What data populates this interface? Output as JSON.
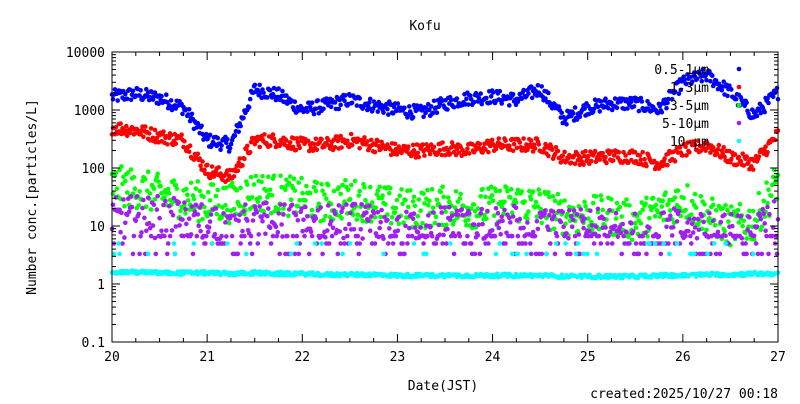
{
  "chart_data": {
    "type": "scatter",
    "title": "Kofu",
    "xlabel": "Date(JST)",
    "ylabel": "Number conc.[particles/L]",
    "yscale": "log",
    "xlim": [
      20,
      27
    ],
    "ylim": [
      0.1,
      10000
    ],
    "xticks": [
      "20",
      "21",
      "22",
      "23",
      "24",
      "25",
      "26",
      "27"
    ],
    "yticks": [
      "0.1",
      "1",
      "10",
      "100",
      "1000",
      "10000"
    ],
    "legend_position": "top-right",
    "footer": "created:2025/10/27 00:18",
    "x": [
      20,
      20.25,
      20.5,
      20.75,
      21,
      21.25,
      21.5,
      21.75,
      22,
      22.25,
      22.5,
      22.75,
      23,
      23.25,
      23.5,
      23.75,
      24,
      24.25,
      24.5,
      24.75,
      25,
      25.25,
      25.5,
      25.75,
      26,
      26.25,
      26.5,
      26.75,
      27
    ],
    "series": [
      {
        "name": "0.5-1μm",
        "color": "#0000ff",
        "spread": 0.12,
        "values": [
          1700,
          1900,
          1600,
          1100,
          300,
          250,
          2300,
          1800,
          1000,
          1200,
          1500,
          1200,
          1000,
          900,
          1300,
          1600,
          1700,
          1500,
          2300,
          700,
          1100,
          1300,
          1300,
          1000,
          3000,
          4000,
          2000,
          800,
          2000
        ]
      },
      {
        "name": "1-3μm",
        "color": "#ff0000",
        "spread": 0.12,
        "values": [
          500,
          450,
          350,
          300,
          90,
          70,
          300,
          300,
          250,
          250,
          300,
          250,
          200,
          200,
          220,
          200,
          250,
          250,
          250,
          150,
          150,
          160,
          160,
          120,
          200,
          250,
          150,
          120,
          380
        ]
      },
      {
        "name": "3-5μm",
        "color": "#00ff00",
        "spread": 0.35,
        "values": [
          50,
          45,
          35,
          30,
          25,
          25,
          40,
          35,
          30,
          25,
          30,
          25,
          20,
          20,
          22,
          20,
          22,
          25,
          22,
          15,
          15,
          15,
          12,
          18,
          30,
          15,
          10,
          12,
          60
        ]
      },
      {
        "name": "5-10μm",
        "color": "#a020f0",
        "spread": 0.45,
        "values": [
          11,
          12,
          12,
          10,
          9,
          8,
          10,
          9,
          8,
          8,
          9,
          8,
          7,
          7,
          8,
          7,
          8,
          8,
          7,
          7,
          7,
          7,
          6,
          6,
          8,
          7,
          6,
          6,
          12
        ]
      },
      {
        "name": "10-μm",
        "color": "#00ffff",
        "spread": 0.03,
        "values": [
          1.6,
          1.6,
          1.55,
          1.55,
          1.55,
          1.5,
          1.55,
          1.5,
          1.5,
          1.45,
          1.45,
          1.45,
          1.4,
          1.4,
          1.4,
          1.4,
          1.4,
          1.4,
          1.4,
          1.35,
          1.35,
          1.35,
          1.35,
          1.4,
          1.4,
          1.45,
          1.45,
          1.5,
          1.5
        ]
      }
    ]
  }
}
